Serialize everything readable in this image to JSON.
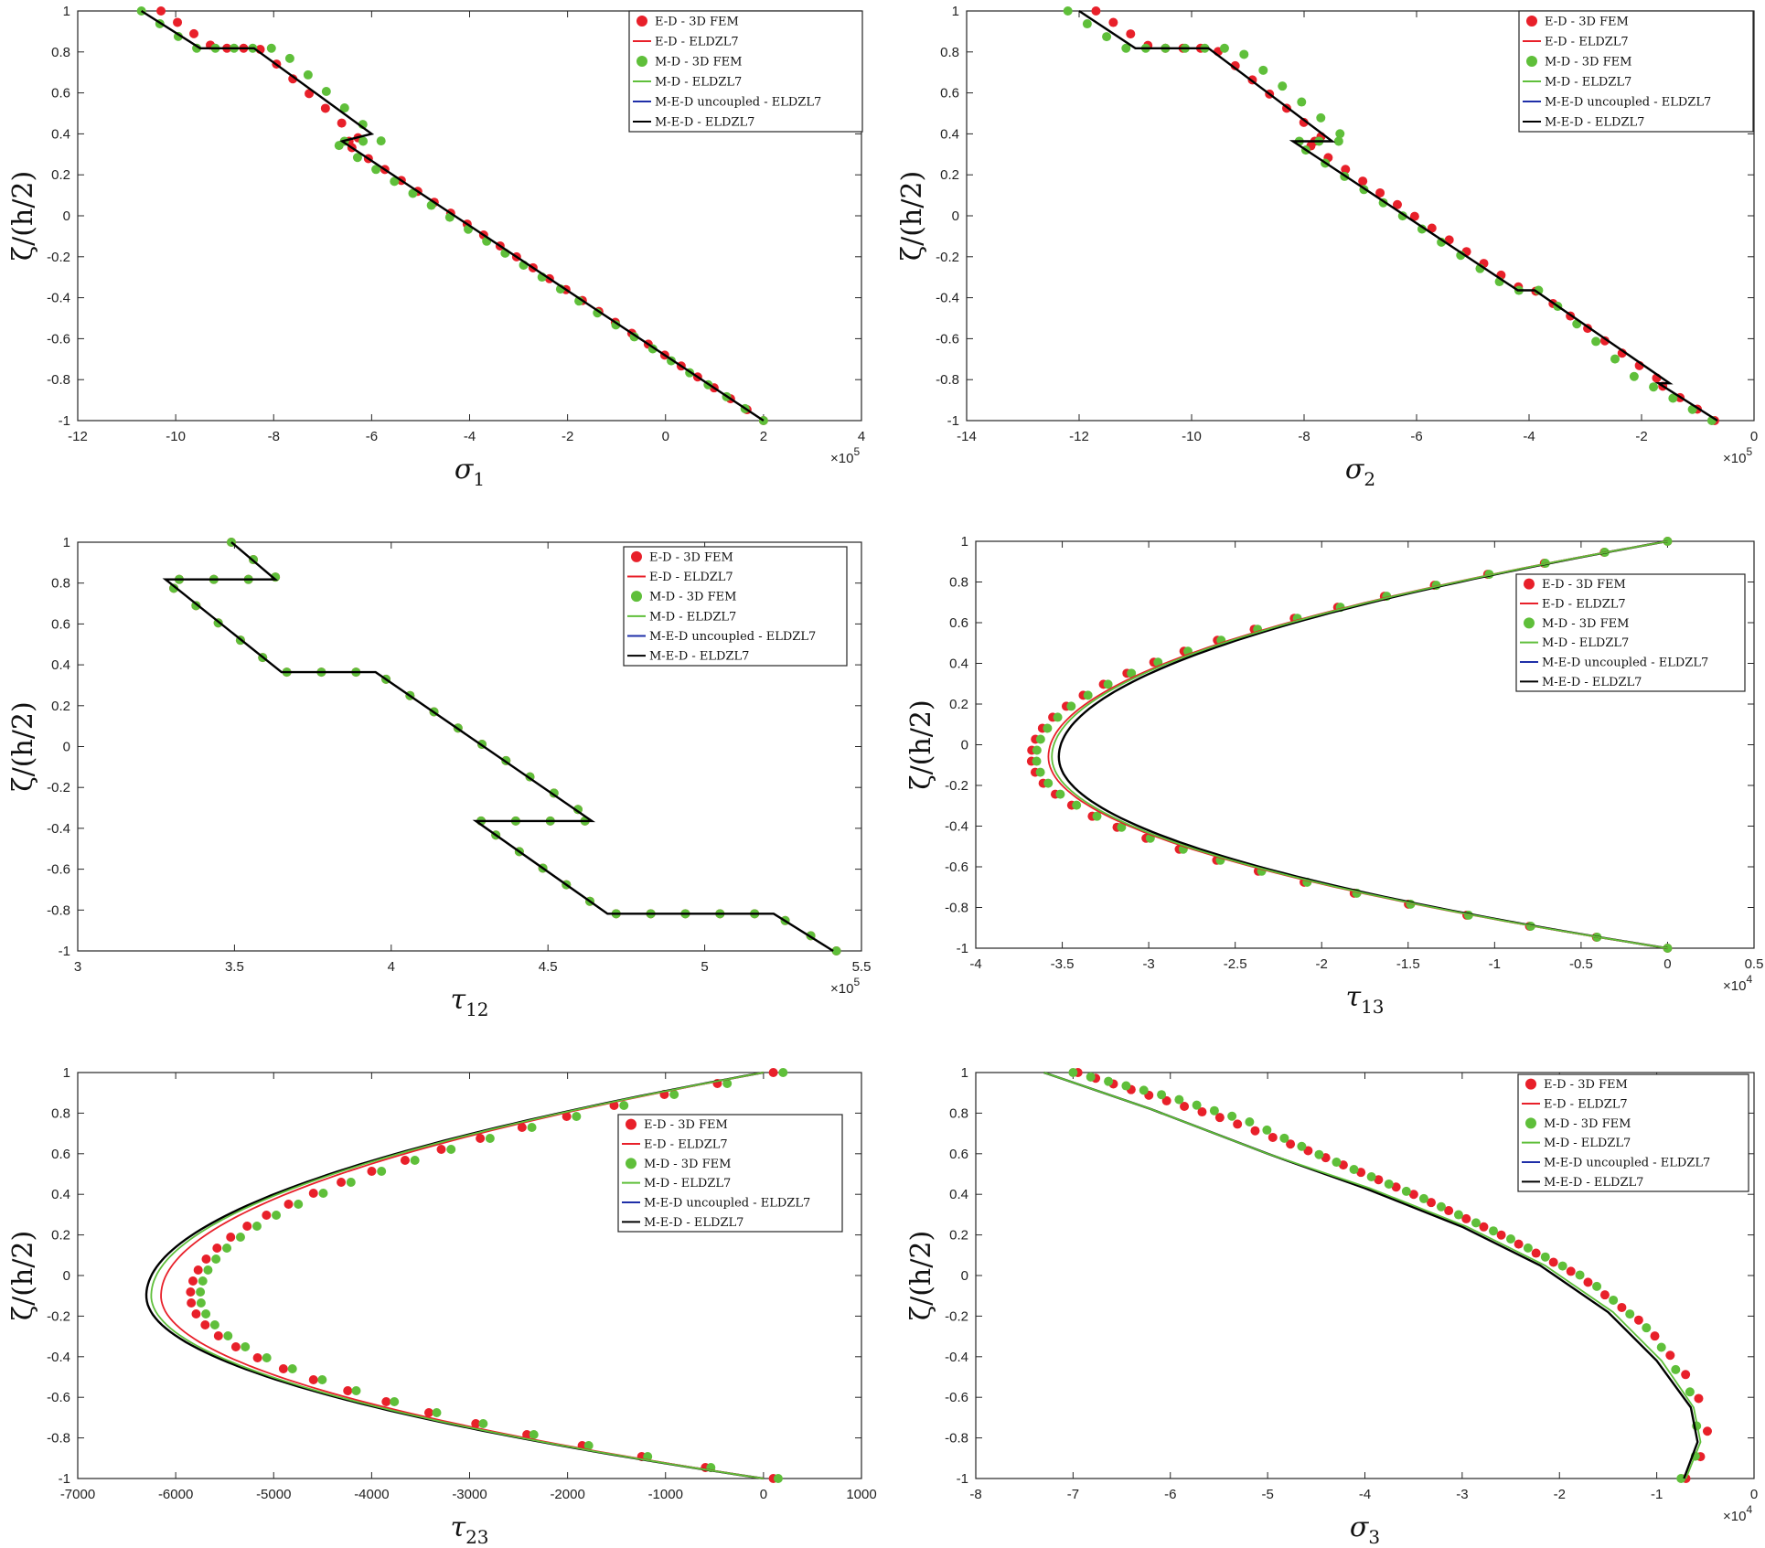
{
  "legend_entries": [
    {
      "label": "E-D - 3D FEM",
      "kind": "marker",
      "color": "#e8202a"
    },
    {
      "label": "E-D - ELDZL7",
      "kind": "line",
      "color": "#e8202a"
    },
    {
      "label": "M-D - 3D FEM",
      "kind": "marker",
      "color": "#5fbf3a"
    },
    {
      "label": "M-D - ELDZL7",
      "kind": "line",
      "color": "#5fbf3a"
    },
    {
      "label": "M-E-D uncoupled - ELDZL7",
      "kind": "line",
      "color": "#1f2fa8"
    },
    {
      "label": "M-E-D - ELDZL7",
      "kind": "line",
      "color": "#000000"
    }
  ],
  "colors": {
    "ed": "#e8202a",
    "md": "#5fbf3a",
    "uncoupled": "#1f2fa8",
    "med": "#000000"
  },
  "chart_data": [
    {
      "id": "sigma1",
      "type": "line",
      "xlabel_sym": "σ",
      "xlabel_sub": "1",
      "ylabel": "ζ/(h/2)",
      "multiplier_base": "×10",
      "multiplier_exp": "5",
      "xlim": [
        -12,
        4
      ],
      "ylim": [
        -1,
        1
      ],
      "xticks": [
        -12,
        -10,
        -8,
        -6,
        -4,
        -2,
        0,
        2,
        4
      ],
      "yticks": [
        -1,
        -0.8,
        -0.6,
        -0.4,
        -0.2,
        0,
        0.2,
        0.4,
        0.6,
        0.8,
        1
      ],
      "legend_pos": "top-right",
      "series": [
        {
          "name": "M-E-D - ELDZL7",
          "kind": "line",
          "x": [
            -10.7,
            -9.5,
            -9.35,
            -8.4,
            -6.0,
            -6.6,
            2.0
          ],
          "y": [
            1,
            0.818,
            0.818,
            0.818,
            0.4,
            0.364,
            -1
          ]
        },
        {
          "name": "E-D - 3D FEM",
          "kind": "markers",
          "count": 40,
          "x": [
            -10.3,
            -9.2,
            -8.3,
            -6.2,
            -6.6,
            2.0
          ],
          "y": [
            1,
            0.818,
            0.818,
            0.364,
            0.364,
            -1
          ]
        },
        {
          "name": "M-D - 3D FEM",
          "kind": "markers",
          "count": 40,
          "x": [
            -10.7,
            -9.6,
            -7.9,
            -5.8,
            -6.8,
            2.0
          ],
          "y": [
            1,
            0.818,
            0.818,
            0.364,
            0.364,
            -1
          ]
        }
      ]
    },
    {
      "id": "sigma2",
      "type": "line",
      "xlabel_sym": "σ",
      "xlabel_sub": "2",
      "ylabel": "ζ/(h/2)",
      "multiplier_base": "×10",
      "multiplier_exp": "5",
      "xlim": [
        -14,
        0
      ],
      "ylim": [
        -1,
        1
      ],
      "xticks": [
        -14,
        -12,
        -10,
        -8,
        -6,
        -4,
        -2,
        0
      ],
      "yticks": [
        -1,
        -0.8,
        -0.6,
        -0.4,
        -0.2,
        0,
        0.2,
        0.4,
        0.6,
        0.8,
        1
      ],
      "legend_pos": "top-right",
      "series": [
        {
          "name": "M-E-D - ELDZL7",
          "kind": "line",
          "x": [
            -12.0,
            -11.0,
            -9.7,
            -7.5,
            -8.2,
            -4.2,
            -3.9,
            -1.5,
            -1.7,
            -0.65
          ],
          "y": [
            1,
            0.818,
            0.818,
            0.364,
            0.364,
            -0.364,
            -0.364,
            -0.818,
            -0.818,
            -1
          ]
        },
        {
          "name": "E-D - 3D FEM",
          "kind": "markers",
          "count": 40,
          "x": [
            -11.7,
            -10.7,
            -9.6,
            -7.6,
            -8.0,
            -4.1,
            -3.9,
            -1.6,
            -1.7,
            -0.7
          ],
          "y": [
            1,
            0.818,
            0.818,
            0.364,
            0.364,
            -0.364,
            -0.364,
            -0.818,
            -0.818,
            -1
          ]
        },
        {
          "name": "M-D - 3D FEM",
          "kind": "markers",
          "count": 40,
          "x": [
            -12.2,
            -11.2,
            -9.2,
            -7.2,
            -8.2,
            -4.3,
            -3.8,
            -2.0,
            -1.9,
            -0.75
          ],
          "y": [
            1,
            0.818,
            0.818,
            0.364,
            0.364,
            -0.364,
            -0.364,
            -0.818,
            -0.818,
            -1
          ]
        }
      ]
    },
    {
      "id": "tau12",
      "type": "line",
      "xlabel_sym": "τ",
      "xlabel_sub": "12",
      "ylabel": "ζ/(h/2)",
      "multiplier_base": "×10",
      "multiplier_exp": "5",
      "xlim": [
        3,
        5.5
      ],
      "ylim": [
        -1,
        1
      ],
      "xticks": [
        3,
        3.5,
        4,
        4.5,
        5,
        5.5
      ],
      "yticks": [
        -1,
        -0.8,
        -0.6,
        -0.4,
        -0.2,
        0,
        0.2,
        0.4,
        0.6,
        0.8,
        1
      ],
      "legend_pos": "top-right",
      "series": [
        {
          "name": "M-E-D - ELDZL7",
          "kind": "line",
          "x": [
            3.49,
            3.63,
            3.28,
            3.65,
            3.95,
            4.64,
            4.27,
            4.69,
            5.22,
            5.41
          ],
          "y": [
            1,
            0.818,
            0.818,
            0.364,
            0.364,
            -0.364,
            -0.364,
            -0.818,
            -0.818,
            -1
          ]
        },
        {
          "name": "E-D - 3D FEM",
          "kind": "markers",
          "count": 40,
          "x": [
            3.49,
            3.64,
            3.27,
            3.65,
            3.95,
            4.65,
            4.27,
            4.69,
            5.22,
            5.42
          ],
          "y": [
            1,
            0.818,
            0.818,
            0.364,
            0.364,
            -0.364,
            -0.364,
            -0.818,
            -0.818,
            -1
          ]
        },
        {
          "name": "M-D - 3D FEM",
          "kind": "markers",
          "count": 40,
          "x": [
            3.49,
            3.64,
            3.27,
            3.65,
            3.95,
            4.65,
            4.27,
            4.69,
            5.22,
            5.42
          ],
          "y": [
            1,
            0.818,
            0.818,
            0.364,
            0.364,
            -0.364,
            -0.364,
            -0.818,
            -0.818,
            -1
          ]
        }
      ]
    },
    {
      "id": "tau13",
      "type": "line",
      "xlabel_sym": "τ",
      "xlabel_sub": "13",
      "ylabel": "ζ/(h/2)",
      "multiplier_base": "×10",
      "multiplier_exp": "4",
      "xlim": [
        -4,
        0.5
      ],
      "ylim": [
        -1,
        1
      ],
      "xticks": [
        -4,
        -3.5,
        -3,
        -2.5,
        -2,
        -1.5,
        -1,
        -0.5,
        0,
        0.5
      ],
      "yticks": [
        -1,
        -0.8,
        -0.6,
        -0.4,
        -0.2,
        0,
        0.2,
        0.4,
        0.6,
        0.8,
        1
      ],
      "legend_pos": "top-right",
      "series": [
        {
          "name": "M-E-D - ELDZL7",
          "kind": "curve",
          "xmin": -3.52,
          "xend": 0.0,
          "yc": -0.06
        },
        {
          "name": "E-D - ELDZL7",
          "kind": "curve",
          "xmin": -3.58,
          "xend": 0.0,
          "yc": -0.06
        },
        {
          "name": "M-D - ELDZL7",
          "kind": "curve",
          "xmin": -3.56,
          "xend": 0.0,
          "yc": -0.06
        },
        {
          "name": "E-D - 3D FEM",
          "kind": "markers_curve",
          "count": 38,
          "xmin": -3.68,
          "xend": 0.0,
          "yc": -0.06
        },
        {
          "name": "M-D - 3D FEM",
          "kind": "markers_curve",
          "count": 38,
          "xmin": -3.65,
          "xend": 0.0,
          "yc": -0.06
        }
      ]
    },
    {
      "id": "tau23",
      "type": "line",
      "xlabel_sym": "τ",
      "xlabel_sub": "23",
      "ylabel": "ζ/(h/2)",
      "multiplier_base": "",
      "multiplier_exp": "",
      "xlim": [
        -7000,
        1000
      ],
      "ylim": [
        -1,
        1
      ],
      "xticks": [
        -7000,
        -6000,
        -5000,
        -4000,
        -3000,
        -2000,
        -1000,
        0,
        1000
      ],
      "yticks": [
        -1,
        -0.8,
        -0.6,
        -0.4,
        -0.2,
        0,
        0.2,
        0.4,
        0.6,
        0.8,
        1
      ],
      "legend_pos": "center-right",
      "series": [
        {
          "name": "M-E-D - ELDZL7",
          "kind": "curve",
          "xmin": -6300,
          "xtop": 0,
          "xbot": 0,
          "yc": -0.1
        },
        {
          "name": "E-D - ELDZL7",
          "kind": "curve",
          "xmin": -6150,
          "xtop": 0,
          "xbot": 0,
          "yc": -0.1
        },
        {
          "name": "M-D - ELDZL7",
          "kind": "curve",
          "xmin": -6250,
          "xtop": 0,
          "xbot": 0,
          "yc": -0.1
        },
        {
          "name": "E-D - 3D FEM",
          "kind": "markers_curve",
          "count": 38,
          "xmin": -5850,
          "xtop": 100,
          "xbot": 100,
          "yc": -0.1
        },
        {
          "name": "M-D - 3D FEM",
          "kind": "markers_curve",
          "count": 38,
          "xmin": -5750,
          "xtop": 200,
          "xbot": 150,
          "yc": -0.1
        }
      ]
    },
    {
      "id": "sigma3",
      "type": "line",
      "xlabel_sym": "σ",
      "xlabel_sub": "3",
      "ylabel": "ζ/(h/2)",
      "multiplier_base": "×10",
      "multiplier_exp": "4",
      "xlim": [
        -8,
        0
      ],
      "ylim": [
        -1,
        1
      ],
      "xticks": [
        -8,
        -7,
        -6,
        -5,
        -4,
        -3,
        -2,
        -1,
        0
      ],
      "yticks": [
        -1,
        -0.8,
        -0.6,
        -0.4,
        -0.2,
        0,
        0.2,
        0.4,
        0.6,
        0.8,
        1
      ],
      "legend_pos": "top-right",
      "series": [
        {
          "name": "M-E-D - ELDZL7",
          "kind": "line",
          "x": [
            -7.3,
            -6.2,
            -5.0,
            -4.0,
            -3.0,
            -2.2,
            -1.5,
            -1.0,
            -0.65,
            -0.58,
            -0.72
          ],
          "y": [
            1,
            0.82,
            0.6,
            0.43,
            0.24,
            0.05,
            -0.18,
            -0.42,
            -0.65,
            -0.82,
            -1
          ]
        },
        {
          "name": "M-D - ELDZL7",
          "kind": "line",
          "x": [
            -7.3,
            -6.2,
            -5.0,
            -3.95,
            -2.95,
            -2.15,
            -1.45,
            -0.95,
            -0.62,
            -0.55,
            -0.7
          ],
          "y": [
            1,
            0.82,
            0.6,
            0.43,
            0.24,
            0.05,
            -0.18,
            -0.42,
            -0.65,
            -0.82,
            -1
          ]
        },
        {
          "name": "E-D - 3D FEM",
          "kind": "markers",
          "count": 40,
          "x": [
            -6.95,
            -6.3,
            -5.5,
            -4.5,
            -3.5,
            -2.6,
            -1.8,
            -1.1,
            -0.6,
            -0.45,
            -0.7
          ],
          "y": [
            1,
            0.9,
            0.78,
            0.6,
            0.4,
            0.2,
            0.0,
            -0.25,
            -0.55,
            -0.82,
            -1
          ]
        },
        {
          "name": "M-D - 3D FEM",
          "kind": "markers",
          "count": 40,
          "x": [
            -7.0,
            -6.0,
            -5.2,
            -4.4,
            -3.4,
            -2.5,
            -1.7,
            -1.05,
            -0.65,
            -0.55,
            -0.75
          ],
          "y": [
            1,
            0.88,
            0.76,
            0.58,
            0.38,
            0.18,
            -0.02,
            -0.28,
            -0.58,
            -0.85,
            -1
          ]
        }
      ]
    }
  ]
}
